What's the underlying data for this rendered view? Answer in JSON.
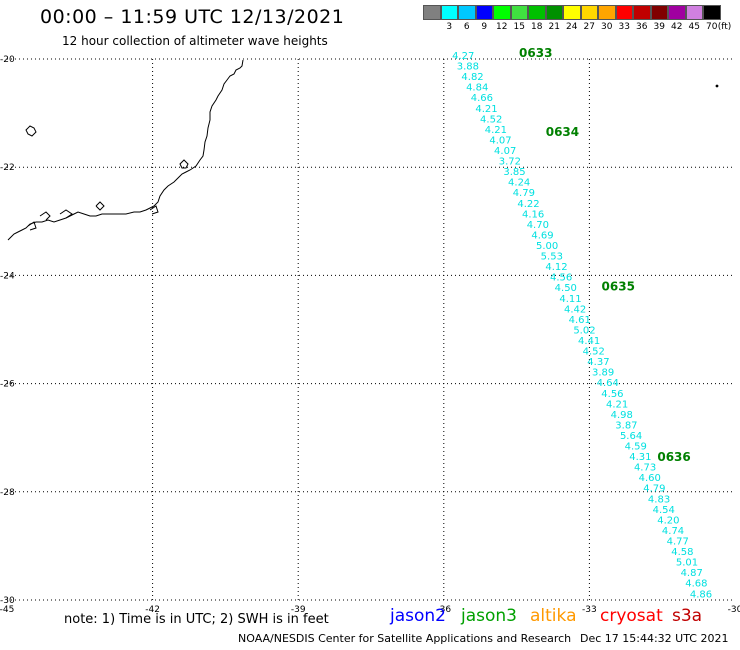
{
  "header": {
    "title": "00:00 – 11:59 UTC 12/13/2021",
    "subtitle": "12 hour collection of altimeter wave heights"
  },
  "color_scale": {
    "unit": "(ft)",
    "swatches": [
      {
        "label": "",
        "color": "#808080"
      },
      {
        "label": "3",
        "color": "#00ffff"
      },
      {
        "label": "6",
        "color": "#00c8ff"
      },
      {
        "label": "9",
        "color": "#0000ff"
      },
      {
        "label": "12",
        "color": "#00ff00"
      },
      {
        "label": "15",
        "color": "#40e040"
      },
      {
        "label": "18",
        "color": "#00c000"
      },
      {
        "label": "21",
        "color": "#009000"
      },
      {
        "label": "24",
        "color": "#ffff00"
      },
      {
        "label": "27",
        "color": "#ffd700"
      },
      {
        "label": "30",
        "color": "#ffa500"
      },
      {
        "label": "33",
        "color": "#ff0000"
      },
      {
        "label": "36",
        "color": "#c00000"
      },
      {
        "label": "39",
        "color": "#800000"
      },
      {
        "label": "42",
        "color": "#a000a0"
      },
      {
        "label": "45",
        "color": "#d080e0"
      },
      {
        "label": "70",
        "color": "#000000"
      }
    ]
  },
  "map": {
    "lon_range": [
      -45,
      -30
    ],
    "lat_range": [
      -30,
      -20
    ],
    "lon_ticks": [
      -45,
      -42,
      -39,
      -36,
      -33,
      -30
    ],
    "lat_ticks": [
      -20,
      -22,
      -24,
      -26,
      -28,
      -30
    ],
    "lon_tick_labels": [
      "-45",
      "-42",
      "-39",
      "-36",
      "-33",
      "-30"
    ],
    "lat_tick_labels": [
      "-20",
      "-22",
      "-24",
      "-26",
      "-28",
      "-30"
    ]
  },
  "track": {
    "color": "#00e0e0",
    "start": [
      -35.6,
      -20.0
    ],
    "end": [
      -30.7,
      -29.95
    ],
    "values": [
      "4.27",
      "3.88",
      "4.82",
      "4.84",
      "4.66",
      "4.21",
      "4.52",
      "4.21",
      "4.07",
      "4.07",
      "3.72",
      "3.85",
      "4.24",
      "4.79",
      "4.22",
      "4.16",
      "4.70",
      "4.69",
      "5.00",
      "5.53",
      "4.12",
      "4.56",
      "4.50",
      "4.11",
      "4.42",
      "4.61",
      "5.02",
      "4.41",
      "4.52",
      "4.37",
      "3.89",
      "4.64",
      "4.56",
      "4.21",
      "4.98",
      "3.87",
      "5.64",
      "4.59",
      "4.31",
      "4.73",
      "4.60",
      "4.79",
      "4.83",
      "4.54",
      "4.20",
      "4.74",
      "4.77",
      "4.58",
      "5.01",
      "4.87",
      "4.68",
      "4.86"
    ],
    "time_labels": [
      {
        "text": "0633",
        "lon": -34.45,
        "lat": -19.96
      },
      {
        "text": "0634",
        "lon": -33.9,
        "lat": -21.42
      },
      {
        "text": "0635",
        "lon": -32.75,
        "lat": -24.28
      },
      {
        "text": "0636",
        "lon": -31.6,
        "lat": -27.43
      }
    ],
    "time_label_color": "#008000"
  },
  "footer": {
    "note": "note: 1) Time is in UTC; 2) SWH is in feet",
    "satellites": [
      {
        "name": "jason2",
        "color": "#0000ff"
      },
      {
        "name": "jason3",
        "color": "#00a000"
      },
      {
        "name": "altika",
        "color": "#ff9900"
      },
      {
        "name": "cryosat",
        "color": "#ff0000"
      },
      {
        "name": "s3a",
        "color": "#c00000"
      }
    ],
    "credit": "NOAA/NESDIS Center for Satellite Applications and Research",
    "timestamp": "Dec 17 15:44:32 UTC 2021"
  }
}
